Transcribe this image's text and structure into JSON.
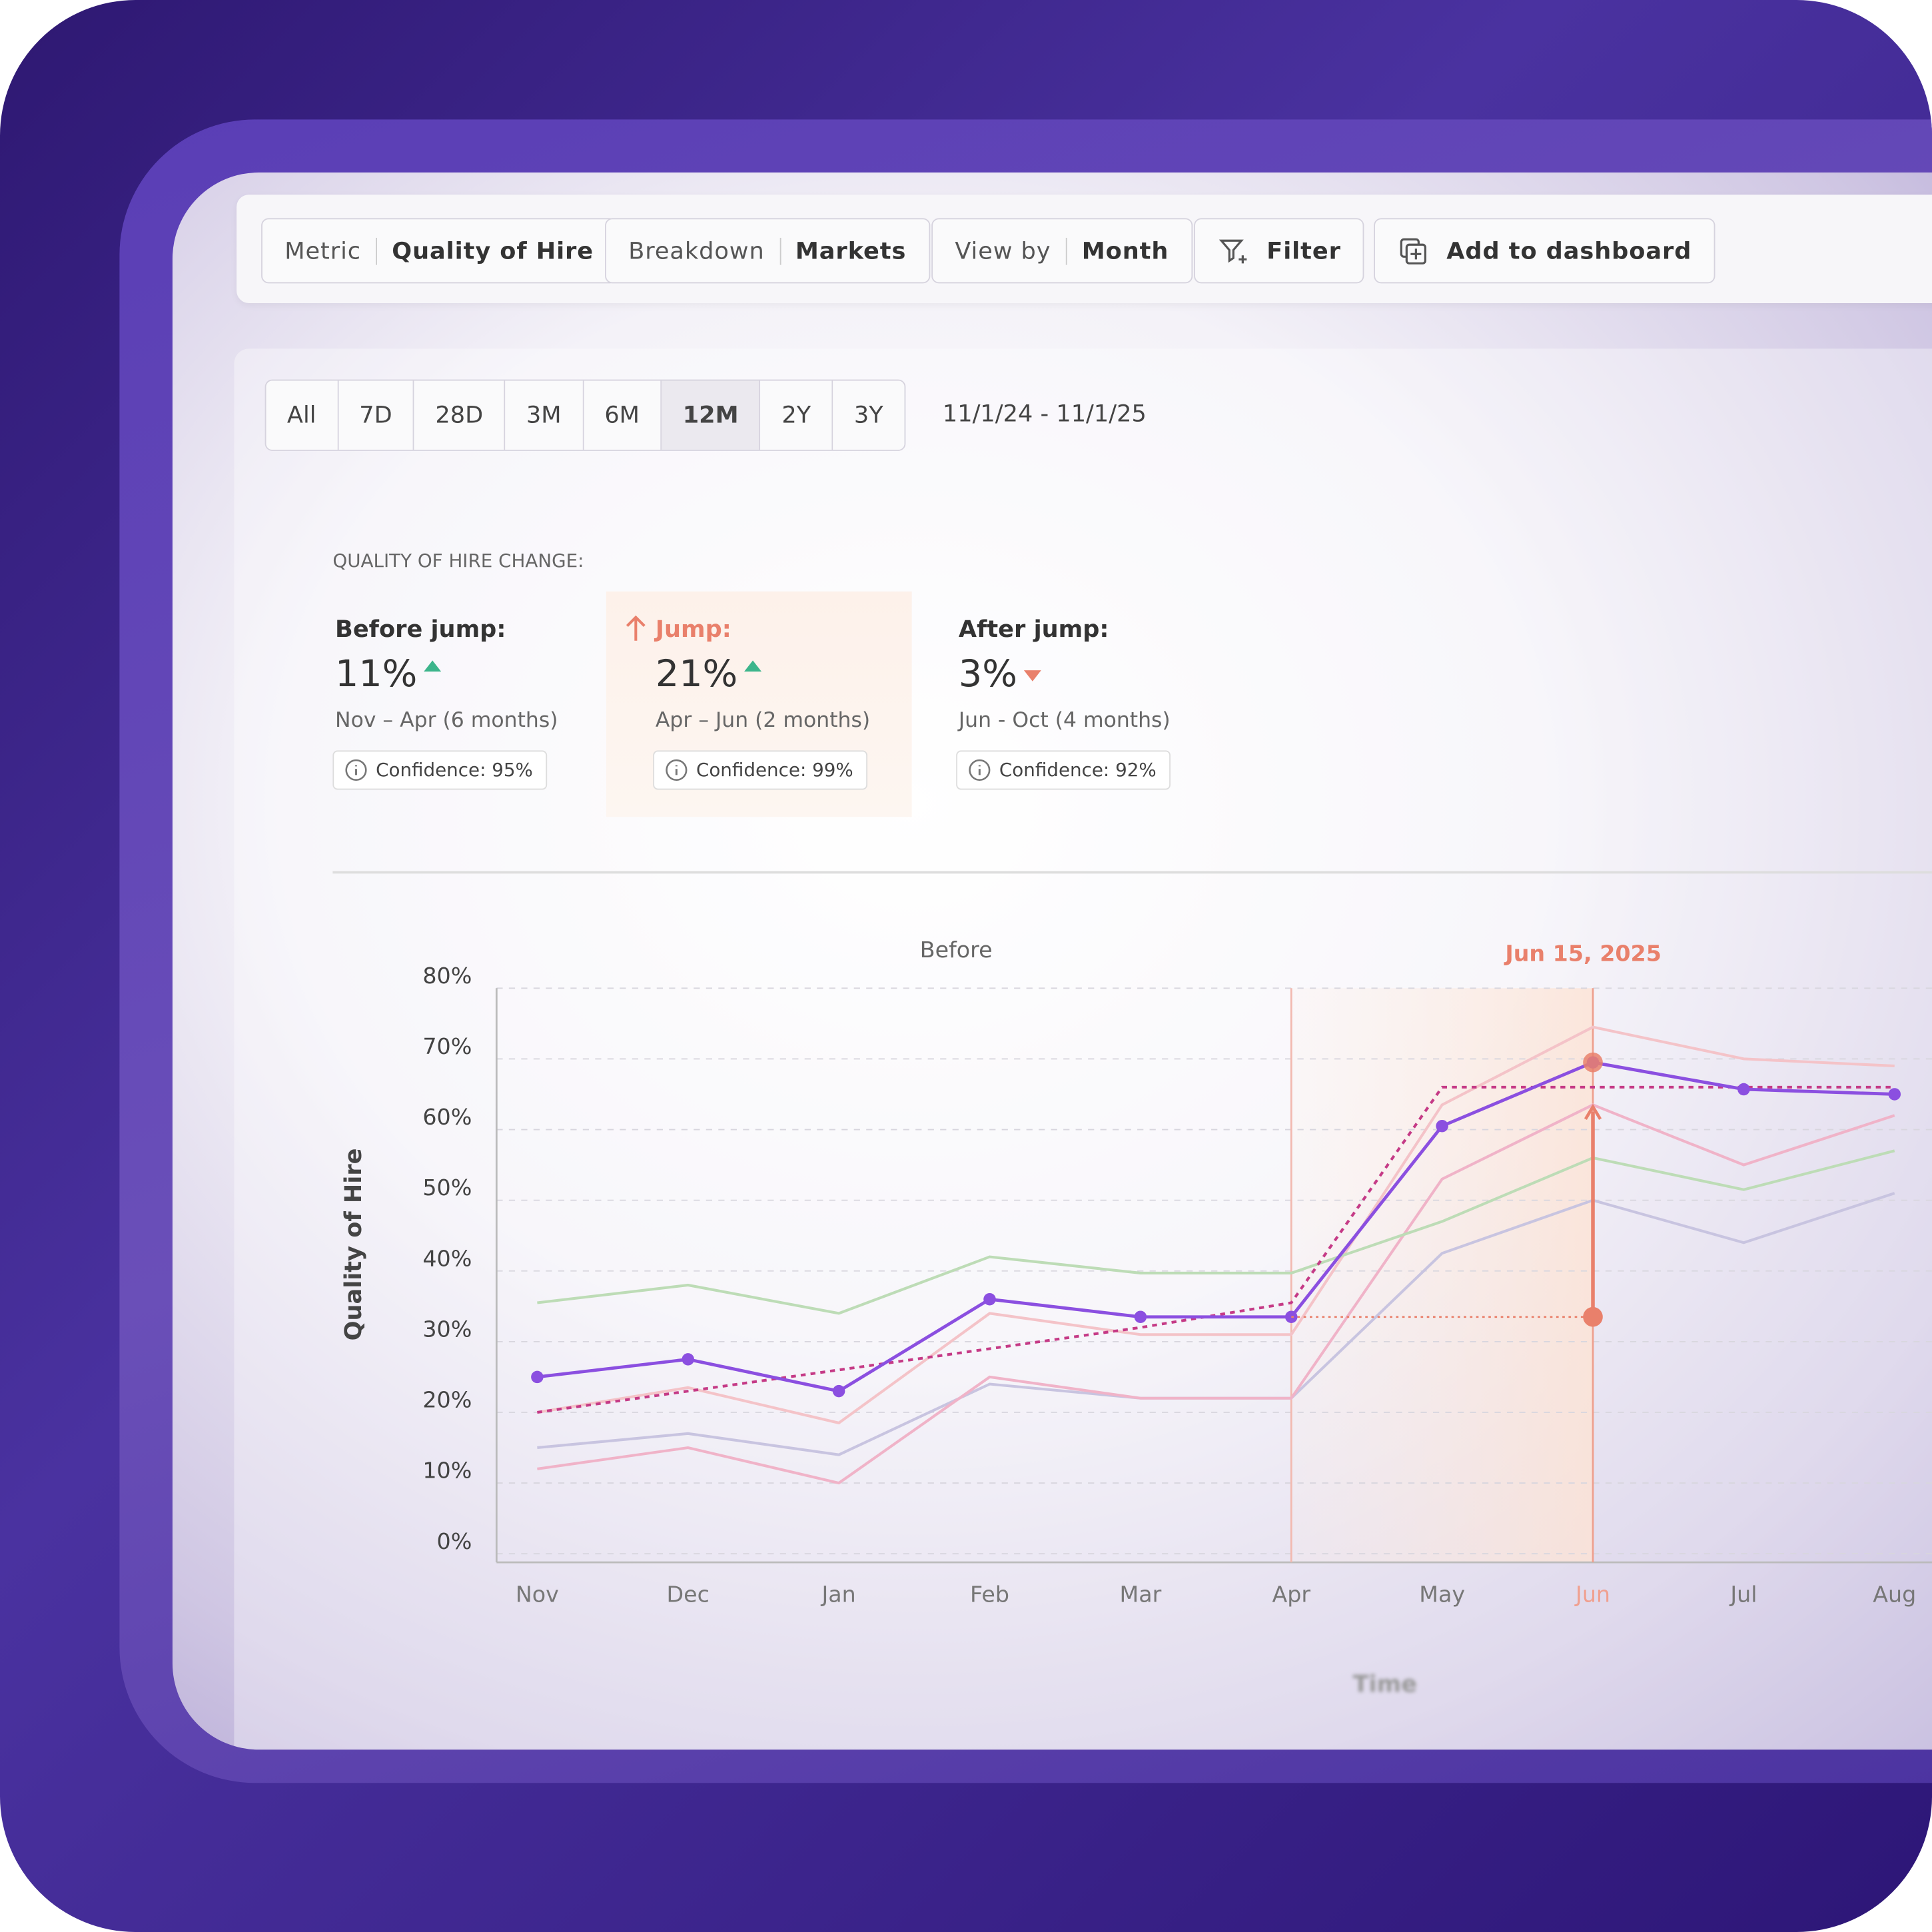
{
  "toolbar": [
    {
      "label": "Metric",
      "value": "Quality of Hire"
    },
    {
      "label": "Breakdown",
      "value": "Markets"
    },
    {
      "label": "View by",
      "value": "Month"
    }
  ],
  "filter": "Filter",
  "add_to_dashboard": "Add to dashboard",
  "ranges": [
    "All",
    "7D",
    "28D",
    "3M",
    "6M",
    "12M",
    "2Y",
    "3Y"
  ],
  "selected_range": "12M",
  "date_range": "11/1/24 - 11/1/25",
  "stats": {
    "title": "QUALITY OF HIRE CHANGE:",
    "cards": [
      {
        "label": "Before jump:",
        "value": "11%",
        "trend": "up",
        "period": "Nov – Apr (6 months)",
        "confidence": "Confidence: 95%"
      },
      {
        "label": "Jump:",
        "value": "21%",
        "trend": "up",
        "period": "Apr – Jun (2 months)",
        "confidence": "Confidence: 99%"
      },
      {
        "label": "After jump:",
        "value": "3%",
        "trend": "down",
        "period": "Jun - Oct (4 months)",
        "confidence": "Confidence: 92%"
      }
    ]
  },
  "chart_data": {
    "type": "line",
    "y_label": "Quality of Hire",
    "x_label": "Time",
    "annotation_before": "Before",
    "annotation_jump": "Jun 15, 2025",
    "categories": [
      "Nov",
      "Dec",
      "Jan",
      "Feb",
      "Mar",
      "Apr",
      "May",
      "Jun",
      "Jul",
      "Aug"
    ],
    "ylim": [
      0,
      80
    ],
    "yticks": [
      {
        "value": 0,
        "label": "0%"
      },
      {
        "value": 10,
        "label": "10%"
      },
      {
        "value": 20,
        "label": "20%"
      },
      {
        "value": 30,
        "label": "30%"
      },
      {
        "value": 40,
        "label": "40%"
      },
      {
        "value": 50,
        "label": "50%"
      },
      {
        "value": 60,
        "label": "60%"
      },
      {
        "value": 70,
        "label": "70%"
      },
      {
        "value": 80,
        "label": "80%"
      }
    ],
    "grid": true,
    "series": [
      {
        "color": "#c8c4e0",
        "values": [
          15,
          17,
          14,
          24,
          22,
          22,
          42.5,
          50,
          44,
          51
        ]
      },
      {
        "color": "#f0b3c8",
        "values": [
          12,
          15,
          10,
          25,
          22,
          22,
          53,
          63.5,
          55,
          62
        ]
      },
      {
        "color": "#f4c3c8",
        "values": [
          20,
          23.5,
          18.5,
          34,
          31,
          31,
          63.5,
          74.5,
          70,
          69
        ]
      },
      {
        "color": "#bddcb6",
        "values": [
          35.5,
          38,
          34,
          42,
          39.7,
          39.7,
          47,
          56,
          51.5,
          57
        ]
      },
      {
        "color": "#c53a86",
        "dashed": true,
        "values": [
          20,
          23,
          26,
          29,
          32,
          35.5,
          66,
          66,
          66,
          66
        ]
      },
      {
        "color": "#8b4fe0",
        "markers": true,
        "values": [
          25,
          27.5,
          23,
          36,
          33.5,
          33.5,
          60.5,
          69.5,
          65.7,
          65
        ]
      }
    ],
    "jump": {
      "from": 33.5,
      "to": 69.5,
      "color": "#e9806b"
    }
  }
}
